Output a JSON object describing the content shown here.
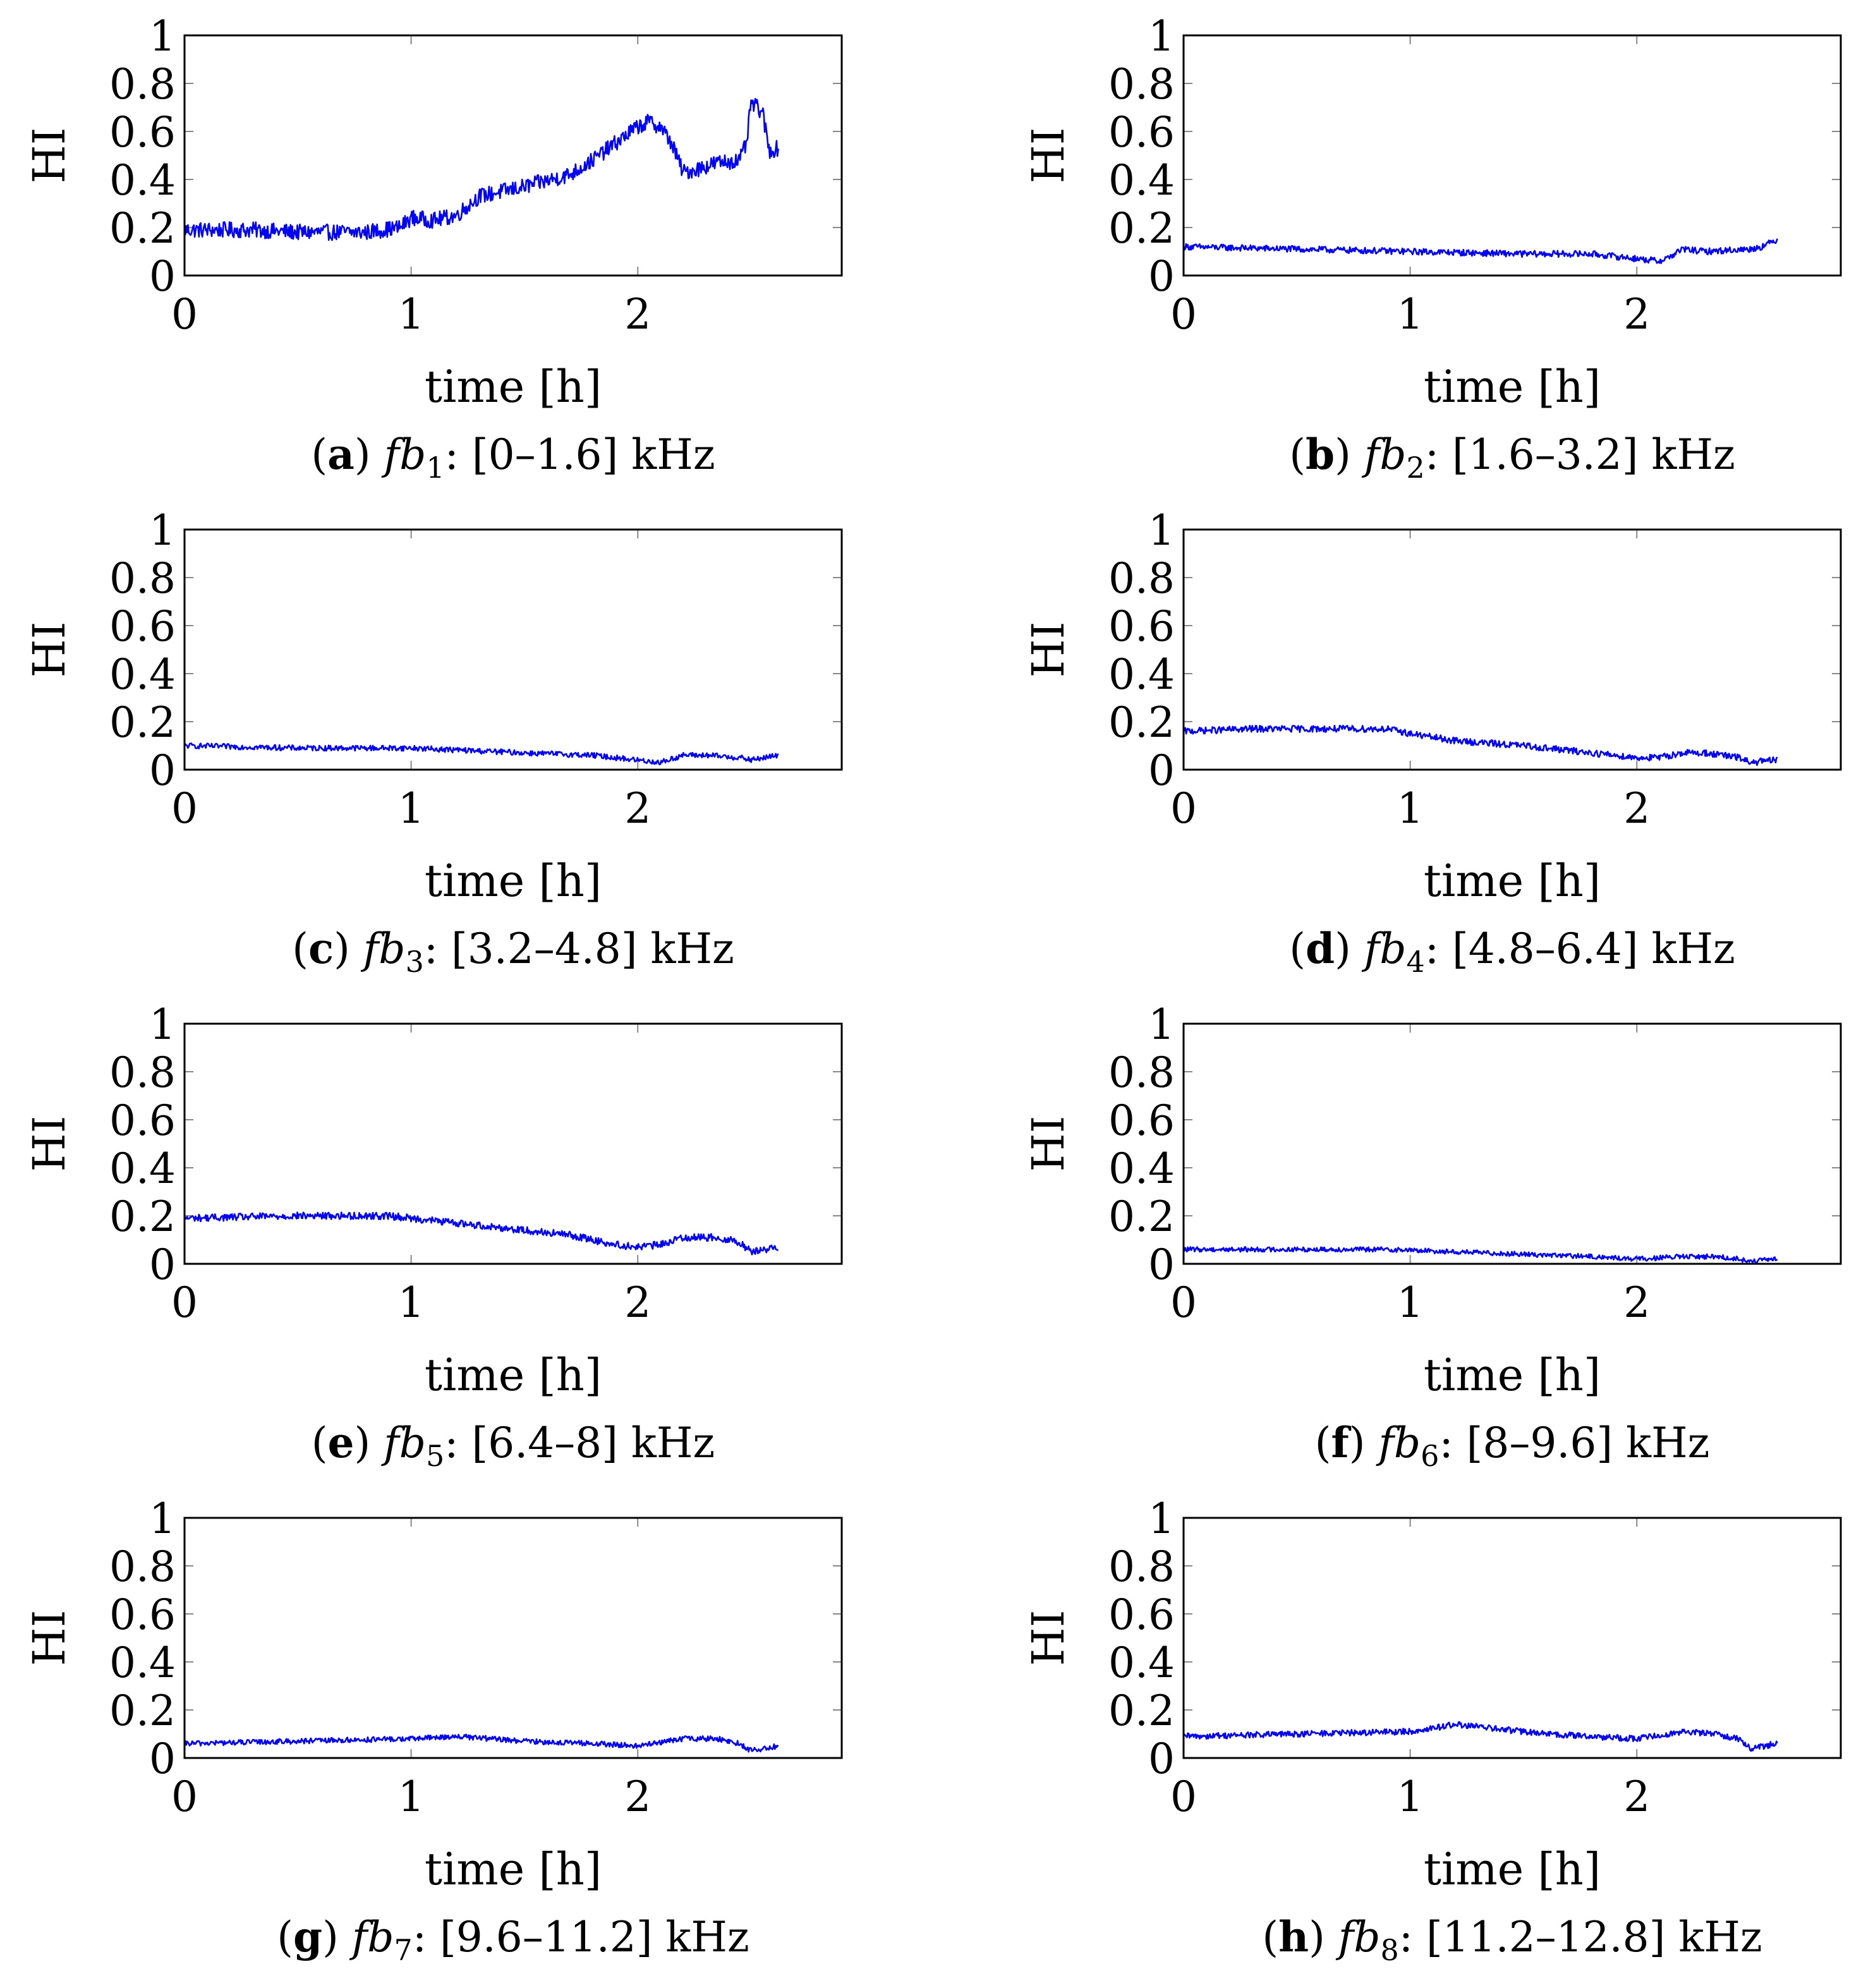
{
  "chart_data": [
    {
      "type": "line",
      "panel": "a",
      "caption": {
        "letter": "a",
        "band": "1",
        "range": ": [0–1.6] kHz"
      },
      "xlabel": "time [h]",
      "ylabel": "HI",
      "xlim": [
        0,
        2.9
      ],
      "ylim": [
        0,
        1
      ],
      "xticks": [
        "0",
        "1",
        "2"
      ],
      "yticks": [
        "0",
        "0.2",
        "0.4",
        "0.6",
        "0.8",
        "1"
      ],
      "color": "#0000ff",
      "series": [
        {
          "name": "fb1",
          "x": [
            0,
            0.3,
            0.5,
            0.8,
            0.95,
            1.0,
            1.1,
            1.2,
            1.3,
            1.5,
            1.7,
            1.8,
            1.9,
            2.0,
            2.05,
            2.1,
            2.15,
            2.2,
            2.25,
            2.35,
            2.45,
            2.48,
            2.5,
            2.55,
            2.58,
            2.62
          ],
          "values": [
            0.19,
            0.19,
            0.18,
            0.18,
            0.2,
            0.24,
            0.23,
            0.25,
            0.33,
            0.37,
            0.42,
            0.48,
            0.55,
            0.62,
            0.64,
            0.62,
            0.55,
            0.43,
            0.44,
            0.47,
            0.48,
            0.55,
            0.72,
            0.68,
            0.52,
            0.53
          ]
        }
      ]
    },
    {
      "type": "line",
      "panel": "b",
      "caption": {
        "letter": "b",
        "band": "2",
        "range": ": [1.6–3.2] kHz"
      },
      "xlabel": "time [h]",
      "ylabel": "HI",
      "xlim": [
        0,
        2.9
      ],
      "ylim": [
        0,
        1
      ],
      "xticks": [
        "0",
        "1",
        "2"
      ],
      "yticks": [
        "0",
        "0.2",
        "0.4",
        "0.6",
        "0.8",
        "1"
      ],
      "color": "#0000ff",
      "series": [
        {
          "name": "fb2",
          "x": [
            0,
            0.5,
            1.0,
            1.5,
            1.8,
            2.0,
            2.1,
            2.15,
            2.2,
            2.3,
            2.5,
            2.55,
            2.62
          ],
          "values": [
            0.12,
            0.11,
            0.1,
            0.09,
            0.09,
            0.07,
            0.06,
            0.08,
            0.11,
            0.1,
            0.11,
            0.12,
            0.15
          ]
        }
      ]
    },
    {
      "type": "line",
      "panel": "c",
      "caption": {
        "letter": "c",
        "band": "3",
        "range": ": [3.2–4.8] kHz"
      },
      "xlabel": "time [h]",
      "ylabel": "HI",
      "xlim": [
        0,
        2.9
      ],
      "ylim": [
        0,
        1
      ],
      "xticks": [
        "0",
        "1",
        "2"
      ],
      "yticks": [
        "0",
        "0.2",
        "0.4",
        "0.6",
        "0.8",
        "1"
      ],
      "color": "#0000ff",
      "series": [
        {
          "name": "fb3",
          "x": [
            0,
            0.5,
            1.0,
            1.5,
            1.8,
            2.0,
            2.1,
            2.2,
            2.3,
            2.45,
            2.5,
            2.62
          ],
          "values": [
            0.1,
            0.09,
            0.09,
            0.07,
            0.06,
            0.04,
            0.03,
            0.06,
            0.06,
            0.05,
            0.04,
            0.06
          ]
        }
      ]
    },
    {
      "type": "line",
      "panel": "d",
      "caption": {
        "letter": "d",
        "band": "4",
        "range": ": [4.8–6.4] kHz"
      },
      "xlabel": "time [h]",
      "ylabel": "HI",
      "xlim": [
        0,
        2.9
      ],
      "ylim": [
        0,
        1
      ],
      "xticks": [
        "0",
        "1",
        "2"
      ],
      "yticks": [
        "0",
        "0.2",
        "0.4",
        "0.6",
        "0.8",
        "1"
      ],
      "color": "#0000ff",
      "series": [
        {
          "name": "fb4",
          "x": [
            0,
            0.3,
            0.6,
            0.9,
            1.0,
            1.2,
            1.5,
            1.8,
            2.0,
            2.1,
            2.2,
            2.3,
            2.45,
            2.5,
            2.62
          ],
          "values": [
            0.16,
            0.17,
            0.17,
            0.17,
            0.15,
            0.12,
            0.1,
            0.07,
            0.05,
            0.05,
            0.07,
            0.07,
            0.05,
            0.03,
            0.04
          ]
        }
      ]
    },
    {
      "type": "line",
      "panel": "e",
      "caption": {
        "letter": "e",
        "band": "5",
        "range": ": [6.4–8] kHz"
      },
      "xlabel": "time [h]",
      "ylabel": "HI",
      "xlim": [
        0,
        2.9
      ],
      "ylim": [
        0,
        1
      ],
      "xticks": [
        "0",
        "1",
        "2"
      ],
      "yticks": [
        "0",
        "0.2",
        "0.4",
        "0.6",
        "0.8",
        "1"
      ],
      "color": "#0000ff",
      "series": [
        {
          "name": "fb5",
          "x": [
            0,
            0.5,
            0.9,
            1.0,
            1.2,
            1.5,
            1.7,
            1.9,
            2.0,
            2.1,
            2.2,
            2.35,
            2.45,
            2.5,
            2.62
          ],
          "values": [
            0.19,
            0.2,
            0.2,
            0.19,
            0.17,
            0.14,
            0.12,
            0.08,
            0.07,
            0.08,
            0.11,
            0.11,
            0.09,
            0.05,
            0.07
          ]
        }
      ]
    },
    {
      "type": "line",
      "panel": "f",
      "caption": {
        "letter": "f",
        "band": "6",
        "range": ": [8–9.6] kHz"
      },
      "xlabel": "time [h]",
      "ylabel": "HI",
      "xlim": [
        0,
        2.9
      ],
      "ylim": [
        0,
        1
      ],
      "xticks": [
        "0",
        "1",
        "2"
      ],
      "yticks": [
        "0",
        "0.2",
        "0.4",
        "0.6",
        "0.8",
        "1"
      ],
      "color": "#0000ff",
      "series": [
        {
          "name": "fb6",
          "x": [
            0,
            0.5,
            0.9,
            1.2,
            1.5,
            1.8,
            2.0,
            2.2,
            2.35,
            2.45,
            2.5,
            2.62
          ],
          "values": [
            0.06,
            0.06,
            0.06,
            0.05,
            0.04,
            0.03,
            0.02,
            0.03,
            0.03,
            0.02,
            0.01,
            0.02
          ]
        }
      ]
    },
    {
      "type": "line",
      "panel": "g",
      "caption": {
        "letter": "g",
        "band": "7",
        "range": ": [9.6–11.2] kHz"
      },
      "xlabel": "time [h]",
      "ylabel": "HI",
      "xlim": [
        0,
        2.9
      ],
      "ylim": [
        0,
        1
      ],
      "xticks": [
        "0",
        "1",
        "2"
      ],
      "yticks": [
        "0",
        "0.2",
        "0.4",
        "0.6",
        "0.8",
        "1"
      ],
      "color": "#0000ff",
      "series": [
        {
          "name": "fb7",
          "x": [
            0,
            0.5,
            1.0,
            1.2,
            1.5,
            1.8,
            2.0,
            2.2,
            2.35,
            2.45,
            2.5,
            2.62
          ],
          "values": [
            0.06,
            0.07,
            0.08,
            0.09,
            0.07,
            0.06,
            0.05,
            0.08,
            0.08,
            0.06,
            0.03,
            0.05
          ]
        }
      ]
    },
    {
      "type": "line",
      "panel": "h",
      "caption": {
        "letter": "h",
        "band": "8",
        "range": ": [11.2–12.8] kHz"
      },
      "xlabel": "time [h]",
      "ylabel": "HI",
      "xlim": [
        0,
        2.9
      ],
      "ylim": [
        0,
        1
      ],
      "xticks": [
        "0",
        "1",
        "2"
      ],
      "yticks": [
        "0",
        "0.2",
        "0.4",
        "0.6",
        "0.8",
        "1"
      ],
      "color": "#0000ff",
      "series": [
        {
          "name": "fb8",
          "x": [
            0,
            0.5,
            1.0,
            1.2,
            1.4,
            1.6,
            1.8,
            2.0,
            2.2,
            2.35,
            2.45,
            2.5,
            2.62
          ],
          "values": [
            0.09,
            0.1,
            0.11,
            0.14,
            0.12,
            0.1,
            0.09,
            0.08,
            0.11,
            0.1,
            0.08,
            0.04,
            0.06
          ]
        }
      ]
    }
  ]
}
